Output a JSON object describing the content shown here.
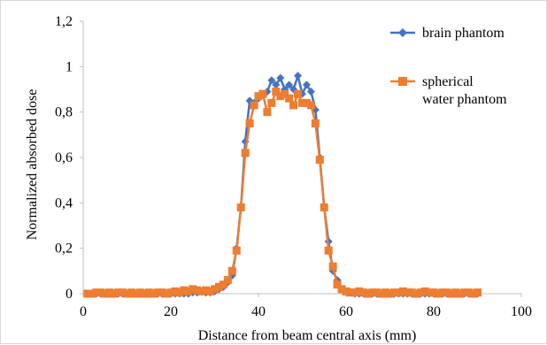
{
  "chart_data": {
    "type": "line",
    "title": "",
    "xlabel": "Distance from beam central axis (mm)",
    "ylabel": "Normalized  absorbed dose",
    "xlim": [
      0,
      100
    ],
    "ylim": [
      0,
      1.2
    ],
    "x_ticks": [
      0,
      20,
      40,
      60,
      80,
      100
    ],
    "y_ticks": [
      0,
      0.2,
      0.4,
      0.6,
      0.8,
      1,
      1.2
    ],
    "x_tick_labels": [
      "0",
      "20",
      "40",
      "60",
      "80",
      "100"
    ],
    "y_tick_labels": [
      "0",
      "0,2",
      "0,4",
      "0,6",
      "0,8",
      "1",
      "1,2"
    ],
    "grid": false,
    "legend_position": "top-right",
    "series": [
      {
        "name": "brain phantom",
        "color": "#4472c4",
        "marker": "diamond",
        "x": [
          1,
          2,
          3,
          4,
          5,
          6,
          7,
          8,
          9,
          10,
          11,
          12,
          13,
          14,
          15,
          16,
          17,
          18,
          19,
          20,
          21,
          22,
          23,
          24,
          25,
          26,
          27,
          28,
          29,
          30,
          31,
          32,
          33,
          34,
          35,
          36,
          37,
          38,
          39,
          40,
          41,
          42,
          43,
          44,
          45,
          46,
          47,
          48,
          49,
          50,
          51,
          52,
          53,
          54,
          55,
          56,
          57,
          58,
          59,
          60,
          61,
          62,
          63,
          64,
          65,
          66,
          67,
          68,
          69,
          70,
          71,
          72,
          73,
          74,
          75,
          76,
          77,
          78,
          79,
          80,
          81,
          82,
          83,
          84,
          85,
          86,
          87,
          88,
          89,
          90
        ],
        "y": [
          0,
          0,
          0,
          0,
          0,
          0,
          0,
          0,
          0,
          0,
          0,
          0,
          0,
          0,
          0,
          0,
          0,
          0,
          0,
          0,
          0,
          0,
          0,
          0,
          0.005,
          0.005,
          0.01,
          0.005,
          0.005,
          0.01,
          0.02,
          0.03,
          0.05,
          0.08,
          0.2,
          0.38,
          0.67,
          0.85,
          0.84,
          0.86,
          0.88,
          0.89,
          0.94,
          0.92,
          0.95,
          0.9,
          0.92,
          0.9,
          0.96,
          0.88,
          0.92,
          0.89,
          0.81,
          0.6,
          0.38,
          0.23,
          0.1,
          0.06,
          0.02,
          0.01,
          0.005,
          0,
          0,
          0,
          0,
          0,
          0,
          0,
          0,
          0,
          0,
          0,
          0,
          0,
          0,
          0,
          0,
          0,
          0,
          0,
          0,
          0,
          0,
          0,
          0,
          0,
          0,
          0,
          0,
          0
        ]
      },
      {
        "name": "spherical water phantom",
        "color": "#ed7d31",
        "marker": "square",
        "x": [
          1,
          2,
          3,
          4,
          5,
          6,
          7,
          8,
          9,
          10,
          11,
          12,
          13,
          14,
          15,
          16,
          17,
          18,
          19,
          20,
          21,
          22,
          23,
          24,
          25,
          26,
          27,
          28,
          29,
          30,
          31,
          32,
          33,
          34,
          35,
          36,
          37,
          38,
          39,
          40,
          41,
          42,
          43,
          44,
          45,
          46,
          47,
          48,
          49,
          50,
          51,
          52,
          53,
          54,
          55,
          56,
          57,
          58,
          59,
          60,
          61,
          62,
          63,
          64,
          65,
          66,
          67,
          68,
          69,
          70,
          71,
          72,
          73,
          74,
          75,
          76,
          77,
          78,
          79,
          80,
          81,
          82,
          83,
          84,
          85,
          86,
          87,
          88,
          89,
          90
        ],
        "y": [
          0,
          0,
          0.005,
          0.005,
          0,
          0.005,
          0,
          0.005,
          0.005,
          0,
          0.005,
          0,
          0.005,
          0,
          0.005,
          0,
          0.005,
          0.005,
          0,
          0.005,
          0.01,
          0.005,
          0.015,
          0.01,
          0.02,
          0.015,
          0.01,
          0.015,
          0.01,
          0.02,
          0.03,
          0.04,
          0.06,
          0.1,
          0.19,
          0.38,
          0.62,
          0.75,
          0.83,
          0.87,
          0.88,
          0.8,
          0.84,
          0.89,
          0.87,
          0.88,
          0.86,
          0.83,
          0.88,
          0.84,
          0.84,
          0.83,
          0.75,
          0.59,
          0.38,
          0.19,
          0.12,
          0.04,
          0.02,
          0.01,
          0.005,
          0.005,
          0.01,
          0.005,
          0,
          0.005,
          0.005,
          0,
          0.005,
          0,
          0.005,
          0.005,
          0.01,
          0.005,
          0.005,
          0,
          0.005,
          0.01,
          0.005,
          0.005,
          0,
          0.005,
          0.005,
          0,
          0.005,
          0,
          0.005,
          0.005,
          0,
          0.005
        ]
      }
    ]
  }
}
